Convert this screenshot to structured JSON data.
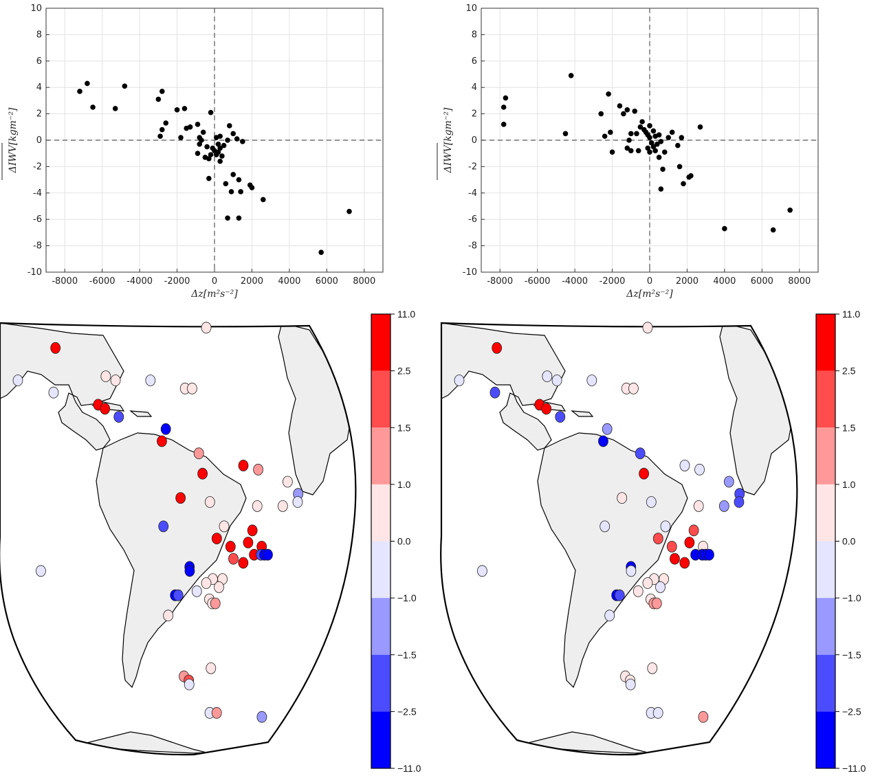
{
  "chart_data": [
    {
      "type": "scatter",
      "panel": "top-left",
      "xlabel": "Δz[m²s⁻²]",
      "ylabel": "ΔIWV[kgm⁻²]",
      "xlim": [
        -9000,
        9000
      ],
      "ylim": [
        -10,
        10
      ],
      "xticks": [
        -8000,
        -6000,
        -4000,
        -2000,
        0,
        2000,
        4000,
        6000,
        8000
      ],
      "yticks": [
        -10,
        -8,
        -6,
        -4,
        -2,
        0,
        2,
        4,
        6,
        8,
        10
      ],
      "grid": true,
      "zero_lines": "dashed",
      "points": [
        [
          -7200,
          3.7
        ],
        [
          -6800,
          4.3
        ],
        [
          -6500,
          2.5
        ],
        [
          -5300,
          2.4
        ],
        [
          -4800,
          4.1
        ],
        [
          -3000,
          3.1
        ],
        [
          -2800,
          3.7
        ],
        [
          -2900,
          0.3
        ],
        [
          -2800,
          0.8
        ],
        [
          -2600,
          1.3
        ],
        [
          -2000,
          2.3
        ],
        [
          -1600,
          2.4
        ],
        [
          -1800,
          0.2
        ],
        [
          -1500,
          0.9
        ],
        [
          -1300,
          1.0
        ],
        [
          -900,
          1.2
        ],
        [
          -800,
          0.2
        ],
        [
          -700,
          0.0
        ],
        [
          -800,
          -0.3
        ],
        [
          -900,
          -1.0
        ],
        [
          -600,
          0.6
        ],
        [
          -400,
          -0.5
        ],
        [
          -500,
          -1.3
        ],
        [
          -300,
          -1.4
        ],
        [
          -200,
          -1.1
        ],
        [
          -100,
          -0.6
        ],
        [
          -200,
          2.1
        ],
        [
          100,
          0.2
        ],
        [
          200,
          -0.3
        ],
        [
          300,
          0.3
        ],
        [
          0,
          -0.8
        ],
        [
          100,
          -1.1
        ],
        [
          200,
          -0.9
        ],
        [
          300,
          -0.6
        ],
        [
          400,
          -1.2
        ],
        [
          300,
          -1.6
        ],
        [
          500,
          -0.4
        ],
        [
          700,
          0.0
        ],
        [
          800,
          1.1
        ],
        [
          1000,
          0.5
        ],
        [
          1200,
          0.1
        ],
        [
          1500,
          -0.1
        ],
        [
          -300,
          -2.9
        ],
        [
          600,
          -3.3
        ],
        [
          1000,
          -2.6
        ],
        [
          1300,
          -3.0
        ],
        [
          900,
          -3.9
        ],
        [
          1400,
          -3.9
        ],
        [
          1900,
          -3.4
        ],
        [
          2000,
          -3.6
        ],
        [
          2600,
          -4.5
        ],
        [
          700,
          -5.9
        ],
        [
          1300,
          -5.9
        ],
        [
          5700,
          -8.5
        ],
        [
          7200,
          -5.4
        ]
      ]
    },
    {
      "type": "scatter",
      "panel": "top-right",
      "xlabel": "Δz[m²s⁻²]",
      "ylabel": "ΔIWV[kgm⁻²]",
      "xlim": [
        -9000,
        9000
      ],
      "ylim": [
        -10,
        10
      ],
      "xticks": [
        -8000,
        -6000,
        -4000,
        -2000,
        0,
        2000,
        4000,
        6000,
        8000
      ],
      "yticks": [
        -10,
        -8,
        -6,
        -4,
        -2,
        0,
        2,
        4,
        6,
        8,
        10
      ],
      "grid": true,
      "zero_lines": "dashed",
      "points": [
        [
          -7700,
          3.2
        ],
        [
          -7800,
          2.5
        ],
        [
          -7800,
          1.2
        ],
        [
          -4500,
          0.5
        ],
        [
          -4200,
          4.9
        ],
        [
          -2200,
          3.5
        ],
        [
          -2600,
          2.0
        ],
        [
          -2400,
          0.3
        ],
        [
          -2100,
          0.6
        ],
        [
          -2000,
          -0.9
        ],
        [
          -1600,
          2.6
        ],
        [
          -1400,
          2.0
        ],
        [
          -1200,
          2.3
        ],
        [
          -1000,
          0.5
        ],
        [
          -1100,
          0.0
        ],
        [
          -1200,
          -0.6
        ],
        [
          -1000,
          -0.8
        ],
        [
          -800,
          2.2
        ],
        [
          -700,
          0.5
        ],
        [
          -600,
          -0.8
        ],
        [
          -500,
          1.0
        ],
        [
          -400,
          1.4
        ],
        [
          -300,
          0.8
        ],
        [
          -200,
          0.6
        ],
        [
          -100,
          0.4
        ],
        [
          0,
          1.1
        ],
        [
          0,
          0.2
        ],
        [
          100,
          -0.2
        ],
        [
          200,
          0.7
        ],
        [
          300,
          0.3
        ],
        [
          -100,
          -0.6
        ],
        [
          0,
          -0.9
        ],
        [
          200,
          -0.5
        ],
        [
          300,
          -0.8
        ],
        [
          400,
          -0.3
        ],
        [
          500,
          0.4
        ],
        [
          600,
          -0.1
        ],
        [
          500,
          -1.3
        ],
        [
          800,
          -0.9
        ],
        [
          1000,
          0.2
        ],
        [
          1200,
          0.6
        ],
        [
          1500,
          -0.4
        ],
        [
          1700,
          0.2
        ],
        [
          2700,
          1.0
        ],
        [
          700,
          -2.2
        ],
        [
          600,
          -3.7
        ],
        [
          1600,
          -2.0
        ],
        [
          1800,
          -3.3
        ],
        [
          2100,
          -2.8
        ],
        [
          2200,
          -2.7
        ],
        [
          4000,
          -6.7
        ],
        [
          6600,
          -6.8
        ],
        [
          7500,
          -5.3
        ]
      ]
    },
    {
      "type": "map",
      "panel": "bottom-left",
      "colorbar_ticks": [
        "11.0",
        "2.5",
        "1.5",
        "1.0",
        "0.0",
        "−1.0",
        "−1.5",
        "−2.5",
        "−11.0"
      ],
      "colorbar_colors": [
        "#ff0000",
        "#ff4c4c",
        "#ff9999",
        "#ffe5e5",
        "#e5e5ff",
        "#9999ff",
        "#4c4cff",
        "#0000ff"
      ],
      "stations": [
        {
          "lon": -106,
          "lat": 28,
          "class": 0
        },
        {
          "lon": -114,
          "lat": 20,
          "class": 4
        },
        {
          "lon": -103,
          "lat": 17,
          "class": 4
        },
        {
          "lon": -60,
          "lat": 33,
          "class": 3
        },
        {
          "lon": -89,
          "lat": 21,
          "class": 3
        },
        {
          "lon": -86,
          "lat": 20,
          "class": 3
        },
        {
          "lon": -76,
          "lat": 20,
          "class": 4
        },
        {
          "lon": -66,
          "lat": 18,
          "class": 3
        },
        {
          "lon": -64,
          "lat": 18,
          "class": 3
        },
        {
          "lon": -90,
          "lat": 14,
          "class": 0
        },
        {
          "lon": -88,
          "lat": 13,
          "class": 0
        },
        {
          "lon": -84,
          "lat": 11,
          "class": 6
        },
        {
          "lon": -71,
          "lat": 8,
          "class": 7
        },
        {
          "lon": -72,
          "lat": 5,
          "class": 0
        },
        {
          "lon": -62,
          "lat": 2,
          "class": 2
        },
        {
          "lon": -61,
          "lat": -3,
          "class": 0
        },
        {
          "lon": -50,
          "lat": -1,
          "class": 0
        },
        {
          "lon": -46,
          "lat": -2,
          "class": 2
        },
        {
          "lon": -38,
          "lat": -5,
          "class": 3
        },
        {
          "lon": -35,
          "lat": -8,
          "class": 5
        },
        {
          "lon": -35,
          "lat": -10,
          "class": 4
        },
        {
          "lon": -67,
          "lat": -9,
          "class": 0
        },
        {
          "lon": -59,
          "lat": -10,
          "class": 3
        },
        {
          "lon": -46,
          "lat": -11,
          "class": 3
        },
        {
          "lon": -39,
          "lat": -11,
          "class": 3
        },
        {
          "lon": -72,
          "lat": -16,
          "class": 6
        },
        {
          "lon": -55,
          "lat": -16,
          "class": 3
        },
        {
          "lon": -47,
          "lat": -17,
          "class": 0
        },
        {
          "lon": -48,
          "lat": -20,
          "class": 0
        },
        {
          "lon": -57,
          "lat": -19,
          "class": 0
        },
        {
          "lon": -53,
          "lat": -21,
          "class": 0
        },
        {
          "lon": -52,
          "lat": -24,
          "class": 1
        },
        {
          "lon": -44,
          "lat": -21,
          "class": 0
        },
        {
          "lon": -46,
          "lat": -23,
          "class": 0
        },
        {
          "lon": -44,
          "lat": -23,
          "class": 6
        },
        {
          "lon": -43,
          "lat": -23,
          "class": 7
        },
        {
          "lon": -42,
          "lat": -23,
          "class": 7
        },
        {
          "lon": -49,
          "lat": -25,
          "class": 0
        },
        {
          "lon": -65,
          "lat": -26,
          "class": 7
        },
        {
          "lon": -65,
          "lat": -27,
          "class": 7
        },
        {
          "lon": -58,
          "lat": -29,
          "class": 3
        },
        {
          "lon": -60,
          "lat": -30,
          "class": 3
        },
        {
          "lon": -55,
          "lat": -29,
          "class": 3
        },
        {
          "lon": -56,
          "lat": -31,
          "class": 3
        },
        {
          "lon": -70,
          "lat": -33,
          "class": 7
        },
        {
          "lon": -69,
          "lat": -33,
          "class": 6
        },
        {
          "lon": -63,
          "lat": -32,
          "class": 4
        },
        {
          "lon": -59,
          "lat": -34,
          "class": 3
        },
        {
          "lon": -58,
          "lat": -35,
          "class": 3
        },
        {
          "lon": -57,
          "lat": -35,
          "class": 2
        },
        {
          "lon": -73,
          "lat": -38,
          "class": 3
        },
        {
          "lon": -110,
          "lat": -27,
          "class": 4
        },
        {
          "lon": -70,
          "lat": -53,
          "class": 2
        },
        {
          "lon": -68,
          "lat": -54,
          "class": 1
        },
        {
          "lon": -58,
          "lat": -51,
          "class": 3
        },
        {
          "lon": -68,
          "lat": -55,
          "class": 4
        },
        {
          "lon": -58,
          "lat": -62,
          "class": 4
        },
        {
          "lon": -54,
          "lat": -62,
          "class": 2
        },
        {
          "lon": -27,
          "lat": -63,
          "class": 5
        }
      ]
    },
    {
      "type": "map",
      "panel": "bottom-right",
      "colorbar_ticks": [
        "11.0",
        "2.5",
        "1.5",
        "1.0",
        "0.0",
        "−1.0",
        "−1.5",
        "−2.5",
        "−11.0"
      ],
      "colorbar_colors": [
        "#ff0000",
        "#ff4c4c",
        "#ff9999",
        "#ffe5e5",
        "#e5e5ff",
        "#9999ff",
        "#4c4cff",
        "#0000ff"
      ],
      "stations": [
        {
          "lon": -106,
          "lat": 28,
          "class": 0
        },
        {
          "lon": -114,
          "lat": 20,
          "class": 4
        },
        {
          "lon": -103,
          "lat": 17,
          "class": 6
        },
        {
          "lon": -60,
          "lat": 33,
          "class": 3
        },
        {
          "lon": -89,
          "lat": 21,
          "class": 4
        },
        {
          "lon": -86,
          "lat": 20,
          "class": 4
        },
        {
          "lon": -76,
          "lat": 20,
          "class": 4
        },
        {
          "lon": -66,
          "lat": 18,
          "class": 3
        },
        {
          "lon": -64,
          "lat": 18,
          "class": 3
        },
        {
          "lon": -90,
          "lat": 14,
          "class": 0
        },
        {
          "lon": -88,
          "lat": 13,
          "class": 0
        },
        {
          "lon": -84,
          "lat": 11,
          "class": 6
        },
        {
          "lon": -71,
          "lat": 8,
          "class": 5
        },
        {
          "lon": -72,
          "lat": 5,
          "class": 7
        },
        {
          "lon": -62,
          "lat": 2,
          "class": 6
        },
        {
          "lon": -61,
          "lat": -3,
          "class": 0
        },
        {
          "lon": -50,
          "lat": -1,
          "class": 4
        },
        {
          "lon": -46,
          "lat": -2,
          "class": 4
        },
        {
          "lon": -38,
          "lat": -5,
          "class": 5
        },
        {
          "lon": -35,
          "lat": -8,
          "class": 6
        },
        {
          "lon": -35,
          "lat": -10,
          "class": 6
        },
        {
          "lon": -67,
          "lat": -9,
          "class": 3
        },
        {
          "lon": -59,
          "lat": -10,
          "class": 4
        },
        {
          "lon": -46,
          "lat": -11,
          "class": 3
        },
        {
          "lon": -39,
          "lat": -11,
          "class": 5
        },
        {
          "lon": -72,
          "lat": -16,
          "class": 4
        },
        {
          "lon": -55,
          "lat": -16,
          "class": 4
        },
        {
          "lon": -47,
          "lat": -17,
          "class": 1
        },
        {
          "lon": -48,
          "lat": -20,
          "class": 0
        },
        {
          "lon": -57,
          "lat": -19,
          "class": 1
        },
        {
          "lon": -53,
          "lat": -21,
          "class": 1
        },
        {
          "lon": -52,
          "lat": -24,
          "class": 0
        },
        {
          "lon": -44,
          "lat": -21,
          "class": 3
        },
        {
          "lon": -46,
          "lat": -23,
          "class": 7
        },
        {
          "lon": -44,
          "lat": -23,
          "class": 7
        },
        {
          "lon": -43,
          "lat": -23,
          "class": 7
        },
        {
          "lon": -42,
          "lat": -23,
          "class": 7
        },
        {
          "lon": -49,
          "lat": -25,
          "class": 0
        },
        {
          "lon": -65,
          "lat": -26,
          "class": 7
        },
        {
          "lon": -65,
          "lat": -27,
          "class": 4
        },
        {
          "lon": -58,
          "lat": -29,
          "class": 3
        },
        {
          "lon": -60,
          "lat": -30,
          "class": 3
        },
        {
          "lon": -55,
          "lat": -29,
          "class": 3
        },
        {
          "lon": -56,
          "lat": -31,
          "class": 4
        },
        {
          "lon": -70,
          "lat": -33,
          "class": 7
        },
        {
          "lon": -69,
          "lat": -33,
          "class": 6
        },
        {
          "lon": -63,
          "lat": -32,
          "class": 3
        },
        {
          "lon": -59,
          "lat": -34,
          "class": 3
        },
        {
          "lon": -58,
          "lat": -35,
          "class": 2
        },
        {
          "lon": -57,
          "lat": -35,
          "class": 2
        },
        {
          "lon": -73,
          "lat": -38,
          "class": 4
        },
        {
          "lon": -110,
          "lat": -27,
          "class": 4
        },
        {
          "lon": -70,
          "lat": -53,
          "class": 3
        },
        {
          "lon": -68,
          "lat": -54,
          "class": 3
        },
        {
          "lon": -58,
          "lat": -51,
          "class": 3
        },
        {
          "lon": -68,
          "lat": -55,
          "class": 4
        },
        {
          "lon": -58,
          "lat": -62,
          "class": 4
        },
        {
          "lon": -54,
          "lat": -62,
          "class": 4
        },
        {
          "lon": -27,
          "lat": -63,
          "class": 2
        }
      ]
    }
  ]
}
